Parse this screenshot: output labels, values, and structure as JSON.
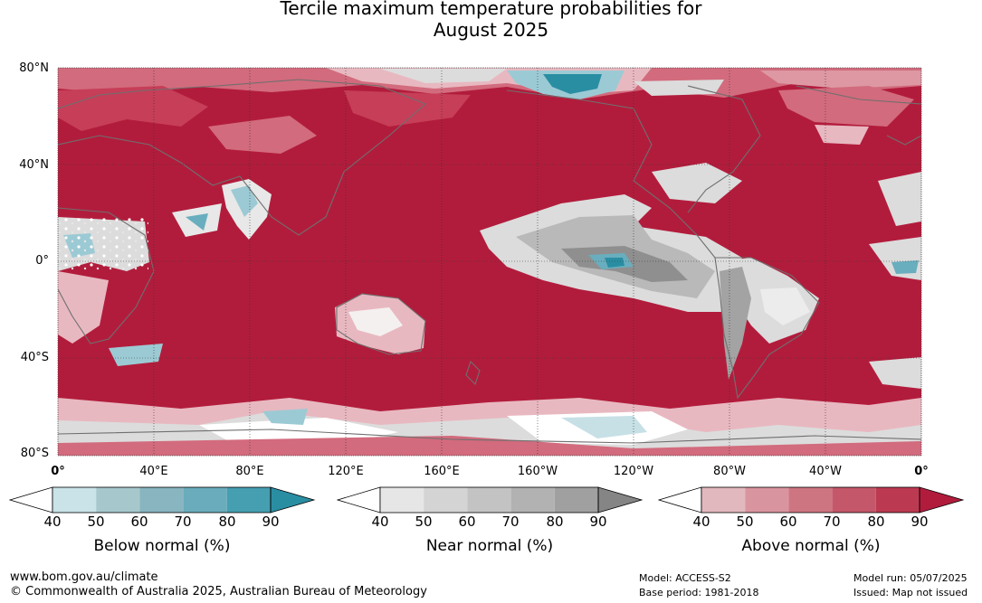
{
  "title": {
    "line1": "Tercile maximum temperature probabilities for",
    "line2": "August 2025"
  },
  "map": {
    "lat_labels": [
      "80°N",
      "40°N",
      "0°",
      "40°S",
      "80°S"
    ],
    "lon_labels": [
      "0°",
      "40°E",
      "80°E",
      "120°E",
      "160°E",
      "160°W",
      "120°W",
      "80°W",
      "40°W",
      "0°"
    ],
    "colors": {
      "ocean_above_90": "#b21c3c",
      "above_80": "#c63e58",
      "above_70": "#d26b7d",
      "above_60": "#dd98a3",
      "above_50": "#e8b8c0",
      "near_normal_light": "#dcdcdc",
      "near_normal_mid": "#b9b9b9",
      "near_normal_dark": "#8f8f8f",
      "below_normal_light": "#c6e0e6",
      "below_normal_mid": "#69aebe",
      "below_normal_dark": "#2a8ea3",
      "coastline": "#6f6f6f"
    }
  },
  "legends": [
    {
      "title": "Below normal (%)",
      "ticks": [
        "40",
        "50",
        "60",
        "70",
        "80",
        "90"
      ],
      "colors": [
        "#c9e3e8",
        "#a6c8cd",
        "#88b5bf",
        "#6aacbb",
        "#459fb0",
        "#2a8ea3"
      ]
    },
    {
      "title": "Near normal (%)",
      "ticks": [
        "40",
        "50",
        "60",
        "70",
        "80",
        "90"
      ],
      "colors": [
        "#e6e6e6",
        "#d4d4d4",
        "#c3c3c3",
        "#b2b2b2",
        "#a0a0a0",
        "#858585"
      ]
    },
    {
      "title": "Above normal (%)",
      "ticks": [
        "40",
        "50",
        "60",
        "70",
        "80",
        "90"
      ],
      "colors": [
        "#e2b8bf",
        "#d9959f",
        "#ce7582",
        "#c4586a",
        "#bc3a51",
        "#b21c3c"
      ]
    }
  ],
  "footer": {
    "website": "www.bom.gov.au/climate",
    "copyright": "© Commonwealth of Australia 2025, Australian Bureau of Meteorology",
    "model": "Model: ACCESS-S2",
    "base_period": "Base period: 1981-2018",
    "model_run": "Model run: 05/07/2025",
    "issued": "Issued: Map not issued"
  }
}
